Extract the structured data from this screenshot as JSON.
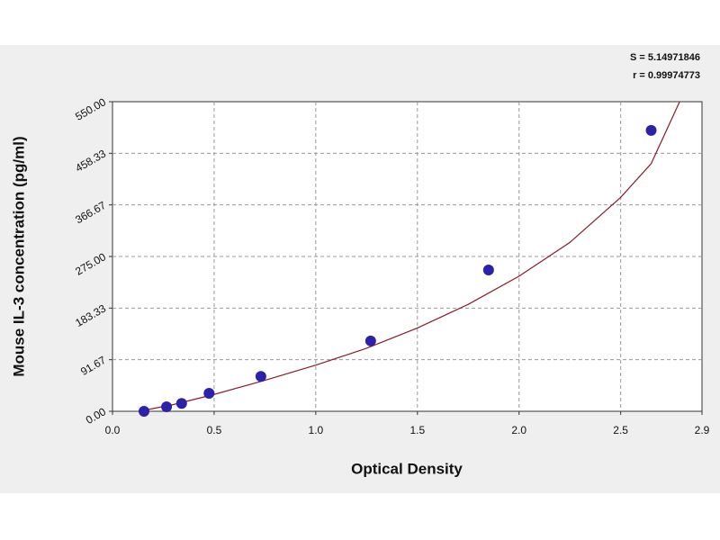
{
  "chart_data": {
    "type": "scatter",
    "x_label": "Optical Density",
    "y_label": "Mouse IL-3 concentration (pg/ml)",
    "annotations": [
      "S = 5.14971846",
      "r = 0.99974773"
    ],
    "x": [
      0.155,
      0.266,
      0.34,
      0.475,
      0.73,
      1.27,
      1.85,
      2.65
    ],
    "values": [
      0,
      8,
      14,
      32,
      62,
      125,
      251,
      499
    ],
    "color": "#2a22a8",
    "fit": {
      "color": "#8b1a2a",
      "x": [
        0.13,
        0.3,
        0.5,
        0.75,
        1.0,
        1.25,
        1.5,
        1.75,
        2.0,
        2.25,
        2.5,
        2.65,
        2.79
      ],
      "values": [
        0,
        12,
        30,
        55,
        82,
        112,
        148,
        190,
        240,
        300,
        380,
        440,
        550
      ]
    },
    "xlim": [
      0,
      2.9
    ],
    "xticks": [
      {
        "value": 0,
        "label": "0.0"
      },
      0.5,
      {
        "value": 1,
        "label": "1.0"
      },
      1.5,
      {
        "value": 2,
        "label": "2.0"
      },
      2.5,
      2.9
    ],
    "ylim": [
      0,
      550
    ],
    "yticks": [
      {
        "value": 0,
        "label": "0.00"
      },
      91.67,
      183.33,
      {
        "value": 275,
        "label": "275.00"
      },
      366.67,
      458.33,
      {
        "value": 550,
        "label": "550.00"
      }
    ],
    "grid": true
  }
}
